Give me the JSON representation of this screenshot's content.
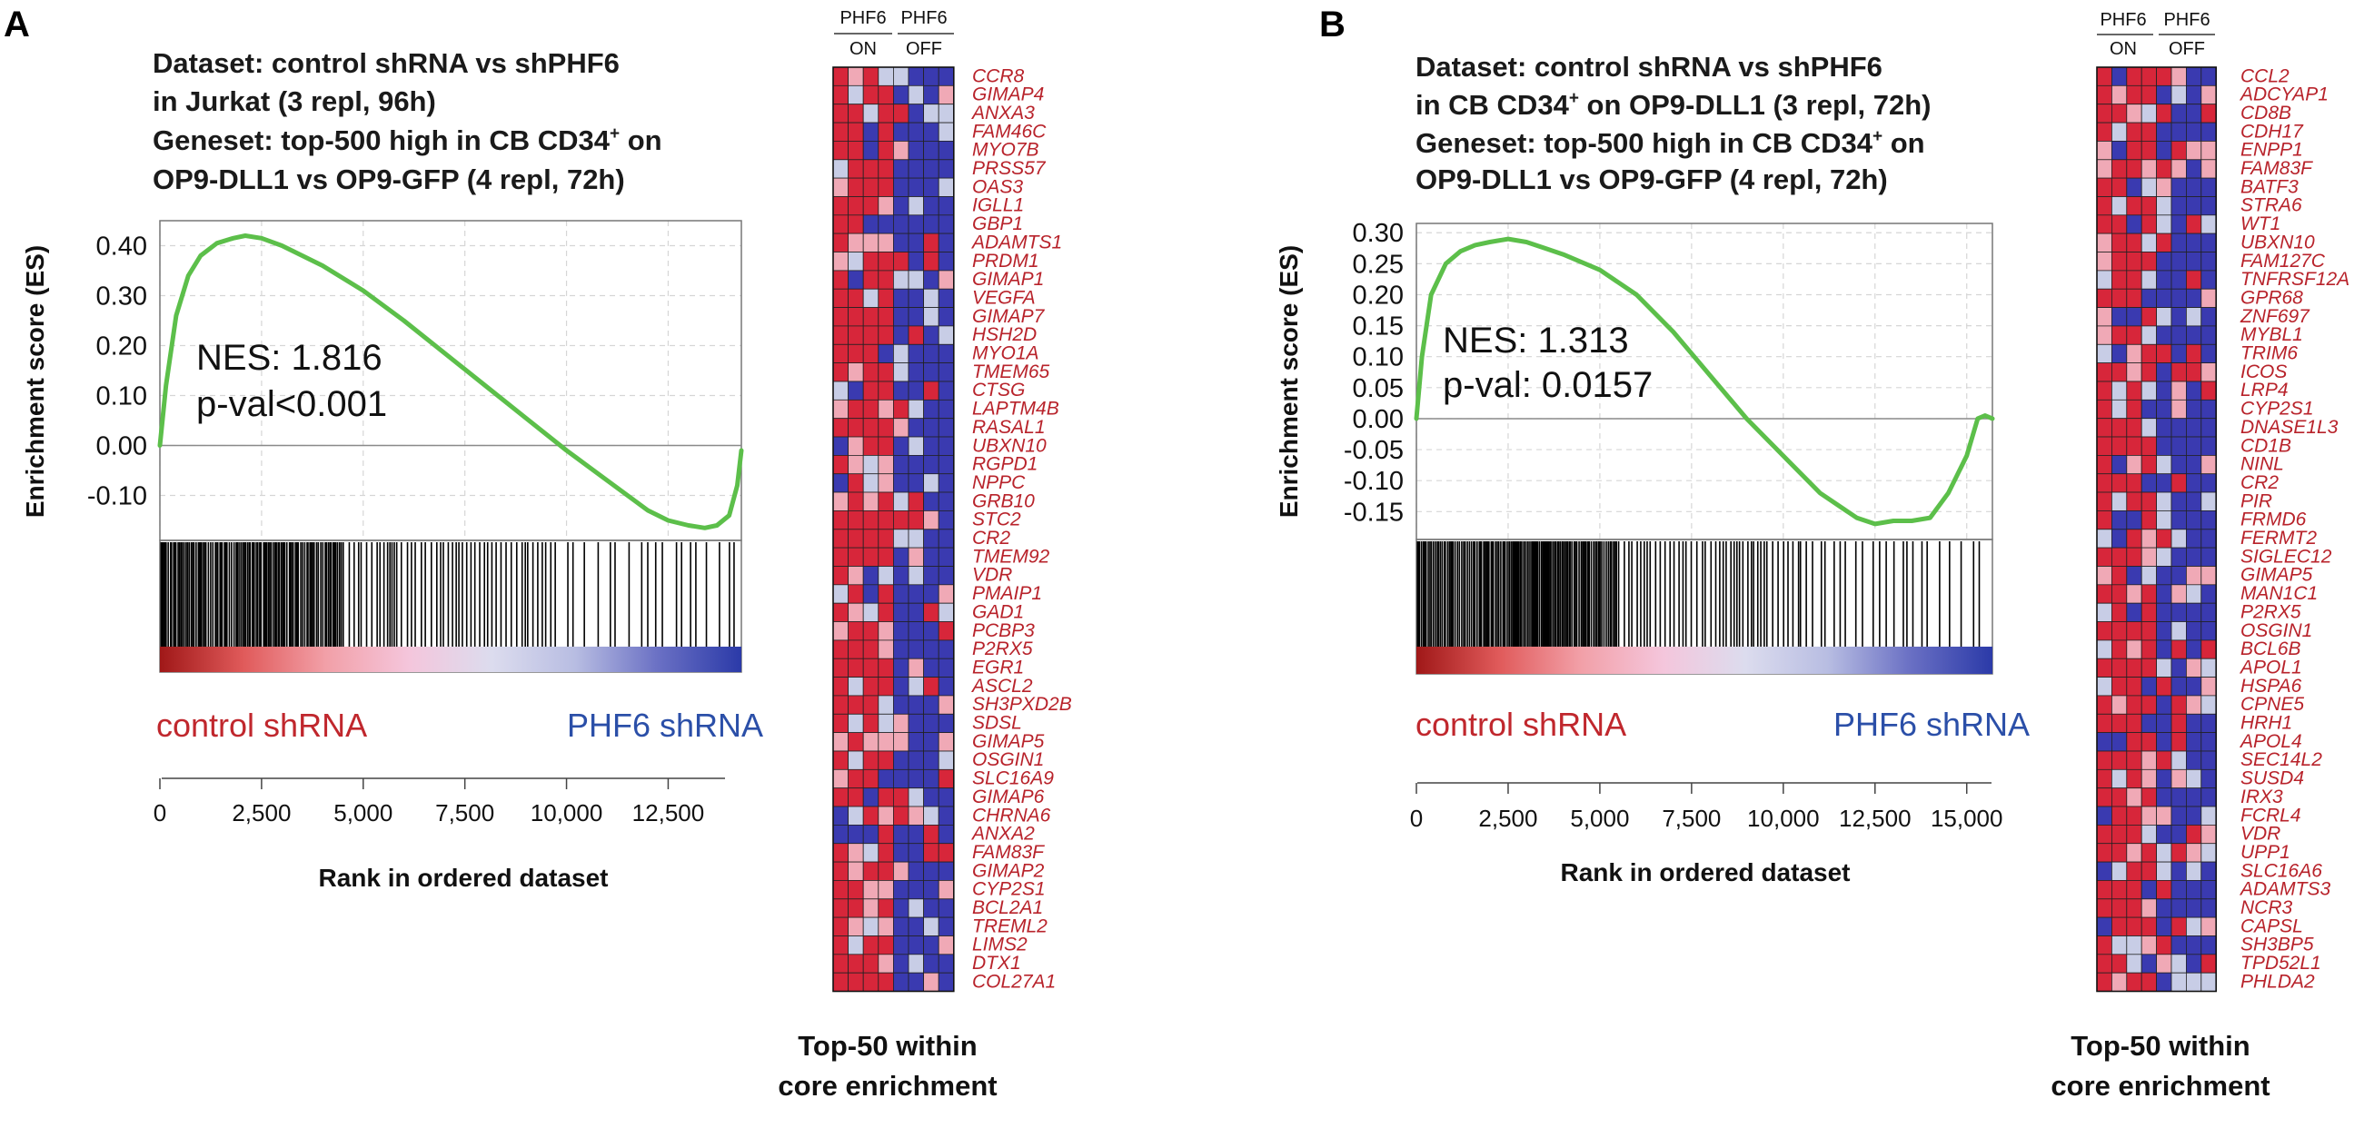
{
  "colors": {
    "curve": "#5cbf4a",
    "control_text": "#c0272d",
    "phf6_text": "#2b4fa8",
    "gene_text": "#b8232b",
    "grid": "#d6d6d6",
    "heat_red": "#d7263a",
    "heat_pink": "#f0a9b6",
    "heat_pale": "#c8cde6",
    "heat_blue": "#3a3ab0"
  },
  "panels": [
    {
      "letter": "A",
      "dataset_lines": [
        "Dataset: control shRNA vs shPHF6",
        "in Jurkat (3 repl, 96h)",
        "Geneset: top-500 high in  CB CD34",
        "OP9-DLL1 vs OP9-GFP (4 repl, 72h)"
      ],
      "dataset_line3_sup": "+",
      "dataset_line3_tail": " on",
      "nes_text": "NES: 1.816",
      "pval_text": "p-val<0.001",
      "ylabel": "Enrichment score (ES)",
      "xlabel": "Rank in ordered dataset",
      "left_condition": "control shRNA",
      "right_condition": "PHF6 shRNA",
      "heatmap_header": {
        "group1_top": "PHF6",
        "group1_bottom": "ON",
        "group2_top": "PHF6",
        "group2_bottom": "OFF"
      },
      "core_label_line1": "Top-50 within",
      "core_label_line2": "core enrichment",
      "chart_data": {
        "type": "line",
        "title": "",
        "xlabel": "Rank in ordered dataset",
        "ylabel": "Enrichment score (ES)",
        "xlim": [
          0,
          14300
        ],
        "ylim": [
          -0.19,
          0.45
        ],
        "yticks": [
          0.4,
          0.3,
          0.2,
          0.1,
          0.0,
          -0.1
        ],
        "ytick_labels": [
          "0.40",
          "0.30",
          "0.20",
          "0.10",
          "0.00",
          "-0.10"
        ],
        "xticks": [
          0,
          2500,
          5000,
          7500,
          10000,
          12500
        ],
        "xtick_labels": [
          "0",
          "2,500",
          "5,000",
          "7,500",
          "10,000",
          "12,500"
        ],
        "es_curve": {
          "x": [
            0,
            150,
            400,
            700,
            1000,
            1400,
            1800,
            2100,
            2500,
            3000,
            4000,
            5000,
            6000,
            7000,
            8000,
            9000,
            10000,
            11000,
            12000,
            12500,
            13000,
            13400,
            13700,
            14000,
            14200,
            14300
          ],
          "y": [
            0.0,
            0.12,
            0.26,
            0.34,
            0.38,
            0.405,
            0.415,
            0.42,
            0.415,
            0.4,
            0.36,
            0.31,
            0.25,
            0.185,
            0.12,
            0.055,
            -0.01,
            -0.07,
            -0.13,
            -0.15,
            -0.16,
            -0.165,
            -0.16,
            -0.14,
            -0.08,
            -0.01
          ]
        },
        "hit_band": {
          "dense_until": 4500,
          "medium_until": 9500,
          "end": 14300
        },
        "rank_gradient": [
          "#a01818",
          "#e05a5a",
          "#f2a0a8",
          "#f4c6dc",
          "#dcdcee",
          "#b8bde2",
          "#6a70c4",
          "#2b3aa8"
        ]
      },
      "genes": [
        "CCR8",
        "GIMAP4",
        "ANXA3",
        "FAM46C",
        "MYO7B",
        "PRSS57",
        "OAS3",
        "IGLL1",
        "GBP1",
        "ADAMTS1",
        "PRDM1",
        "GIMAP1",
        "VEGFA",
        "GIMAP7",
        "HSH2D",
        "MYO1A",
        "TMEM65",
        "CTSG",
        "LAPTM4B",
        "RASAL1",
        "UBXN10",
        "RGPD1",
        "NPPC",
        "GRB10",
        "STC2",
        "CR2",
        "TMEM92",
        "VDR",
        "PMAIP1",
        "GAD1",
        "PCBP3",
        "P2RX5",
        "EGR1",
        "ASCL2",
        "SH3PXD2B",
        "SDSL",
        "GIMAP5",
        "OSGIN1",
        "SLC16A9",
        "GIMAP6",
        "CHRNA6",
        "ANXA2",
        "FAM83F",
        "GIMAP2",
        "CYP2S1",
        "BCL2A1",
        "TREML2",
        "LIMS2",
        "DTX1",
        "COL27A1"
      ]
    },
    {
      "letter": "B",
      "dataset_lines": [
        "Dataset: control shRNA vs shPHF6",
        "in CB CD34",
        "Geneset: top-500 high in  CB CD34",
        "OP9-DLL1 vs OP9-GFP (4 repl, 72h)"
      ],
      "dataset_line2_sup": "+",
      "dataset_line2_tail": " on OP9-DLL1 (3 repl, 72h)",
      "dataset_line3_sup": "+",
      "dataset_line3_tail": " on",
      "nes_text": "NES: 1.313",
      "pval_text": "p-val: 0.0157",
      "ylabel": "Enrichment score (ES)",
      "xlabel": "Rank in ordered dataset",
      "left_condition": "control shRNA",
      "right_condition": "PHF6 shRNA",
      "heatmap_header": {
        "group1_top": "PHF6",
        "group1_bottom": "ON",
        "group2_top": "PHF6",
        "group2_bottom": "OFF"
      },
      "core_label_line1": "Top-50 within",
      "core_label_line2": "core enrichment",
      "chart_data": {
        "type": "line",
        "title": "",
        "xlabel": "Rank in ordered dataset",
        "ylabel": "Enrichment score (ES)",
        "xlim": [
          0,
          15700
        ],
        "ylim": [
          -0.195,
          0.315
        ],
        "yticks": [
          0.3,
          0.25,
          0.2,
          0.15,
          0.1,
          0.05,
          0.0,
          -0.05,
          -0.1,
          -0.15
        ],
        "ytick_labels": [
          "0.30",
          "0.25",
          "0.20",
          "0.15",
          "0.10",
          "0.05",
          "0.00",
          "-0.05",
          "-0.10",
          "-0.15"
        ],
        "xticks": [
          0,
          2500,
          5000,
          7500,
          10000,
          12500,
          15000
        ],
        "xtick_labels": [
          "0",
          "2,500",
          "5,000",
          "7,500",
          "10,000",
          "12,500",
          "15,000"
        ],
        "es_curve": {
          "x": [
            0,
            150,
            400,
            800,
            1200,
            1600,
            2000,
            2500,
            3000,
            3500,
            4000,
            5000,
            6000,
            7000,
            8000,
            9000,
            10000,
            11000,
            12000,
            12500,
            13000,
            13500,
            14000,
            14500,
            15000,
            15300,
            15500,
            15700
          ],
          "y": [
            0.0,
            0.1,
            0.2,
            0.25,
            0.27,
            0.28,
            0.285,
            0.29,
            0.285,
            0.275,
            0.265,
            0.24,
            0.2,
            0.14,
            0.07,
            0.0,
            -0.06,
            -0.12,
            -0.16,
            -0.17,
            -0.165,
            -0.165,
            -0.16,
            -0.12,
            -0.06,
            0.0,
            0.005,
            0.0
          ]
        },
        "hit_band": {
          "dense_until": 5500,
          "medium_until": 10500,
          "end": 15700
        },
        "rank_gradient": [
          "#a01818",
          "#e05a5a",
          "#f2a0a8",
          "#f4c6dc",
          "#dcdcee",
          "#b8bde2",
          "#6a70c4",
          "#2b3aa8"
        ]
      },
      "genes": [
        "CCL2",
        "ADCYAP1",
        "CD8B",
        "CDH17",
        "ENPP1",
        "FAM83F",
        "BATF3",
        "STRA6",
        "WT1",
        "UBXN10",
        "FAM127C",
        "TNFRSF12A",
        "GPR68",
        "ZNF697",
        "MYBL1",
        "TRIM6",
        "ICOS",
        "LRP4",
        "CYP2S1",
        "DNASE1L3",
        "CD1B",
        "NINL",
        "CR2",
        "PIR",
        "FRMD6",
        "FERMT2",
        "SIGLEC12",
        "GIMAP5",
        "MAN1C1",
        "P2RX5",
        "OSGIN1",
        "BCL6B",
        "APOL1",
        "HSPA6",
        "CPNE5",
        "HRH1",
        "APOL4",
        "SEC14L2",
        "SUSD4",
        "IRX3",
        "FCRL4",
        "VDR",
        "UPP1",
        "SLC16A6",
        "ADAMTS3",
        "NCR3",
        "CAPSL",
        "SH3BP5",
        "TPD52L1",
        "PHLDA2"
      ]
    }
  ]
}
